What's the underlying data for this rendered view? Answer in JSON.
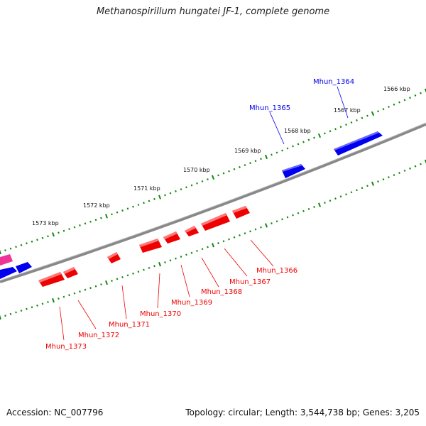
{
  "title": "Methanospirillum hungatei JF-1, complete genome",
  "footer": {
    "accession": "Accession: NC_007796",
    "summary": "Topology: circular; Length: 3,544,738 bp; Genes: 3,205"
  },
  "colors": {
    "forward_gene": "#0000ee",
    "reverse_gene": "#ee0000",
    "other_feature": "#ee3399",
    "backbone": "#888888",
    "ticks": "#118811"
  },
  "kbp_labels": [
    "1566 kbp",
    "1567 kbp",
    "1568 kbp",
    "1569 kbp",
    "1570 kbp",
    "1571 kbp",
    "1572 kbp",
    "1573 kbp"
  ],
  "genes_forward": [
    {
      "name": "Mhun_1364"
    },
    {
      "name": "Mhun_1365"
    }
  ],
  "genes_reverse": [
    {
      "name": "Mhun_1366"
    },
    {
      "name": "Mhun_1367"
    },
    {
      "name": "Mhun_1368"
    },
    {
      "name": "Mhun_1369"
    },
    {
      "name": "Mhun_1370"
    },
    {
      "name": "Mhun_1371"
    },
    {
      "name": "Mhun_1372"
    },
    {
      "name": "Mhun_1373"
    }
  ]
}
